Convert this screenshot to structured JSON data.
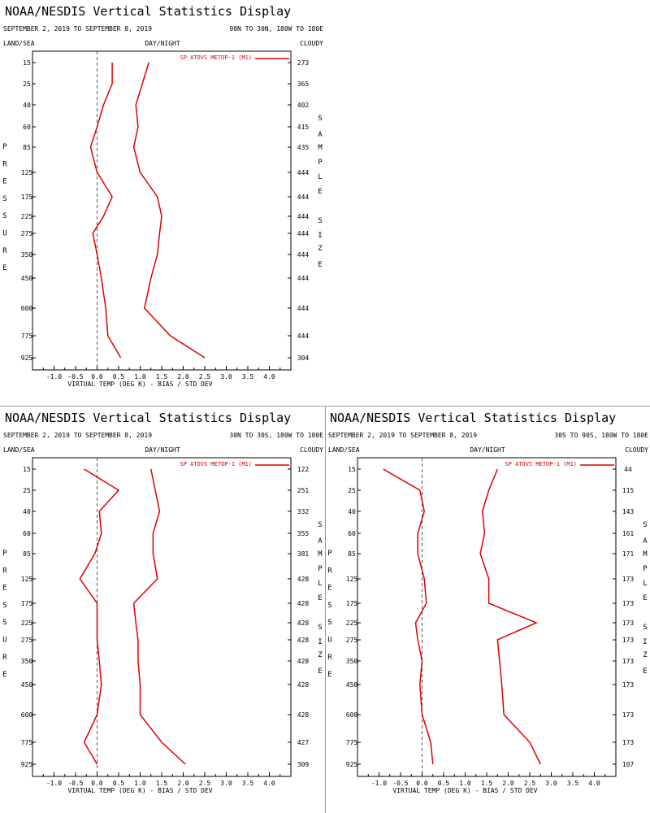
{
  "chart_data": [
    {
      "type": "line",
      "title": "NOAA/NESDIS Vertical Statistics Display",
      "date_range": "SEPTEMBER 2, 2019 TO SEPTEMBER 8, 2019",
      "region": "90N TO 30N, 180W TO 180E",
      "top_left_label": "LAND/SEA",
      "top_center_label": "DAY/NIGHT",
      "top_right_label": "CLOUDY",
      "xlabel": "VIRTUAL TEMP (DEG K) - BIAS / STD DEV",
      "ylabel": "PRESSURE",
      "right_axis_label": "SAMPLE SIZE",
      "legend": "SP ATOVS METOP-1 (M1)",
      "line_color": "#dd0000",
      "xlim": [
        -1.5,
        4.5
      ],
      "x_ticks": [
        "-1.0",
        "-0.5",
        "0.0",
        "0.5",
        "1.0",
        "1.5",
        "2.0",
        "2.5",
        "3.0",
        "3.5",
        "4.0"
      ],
      "pressure_levels": [
        "15",
        "25",
        "40",
        "60",
        "85",
        "125",
        "175",
        "225",
        "275",
        "350",
        "450",
        "600",
        "775",
        "925"
      ],
      "sample_sizes": [
        "273",
        "365",
        "402",
        "415",
        "435",
        "444",
        "444",
        "444",
        "444",
        "444",
        "444",
        "444",
        "444",
        "304"
      ],
      "series": [
        {
          "values": [
            0.35,
            0.35,
            0.15,
            0.0,
            -0.15,
            0.0,
            0.35,
            0.15,
            -0.1,
            0.0,
            0.1,
            0.2,
            0.25,
            0.55
          ]
        },
        {
          "values": [
            1.2,
            1.05,
            0.9,
            0.95,
            0.85,
            1.0,
            1.4,
            1.5,
            1.45,
            1.4,
            1.25,
            1.1,
            1.7,
            2.5
          ]
        }
      ]
    },
    {
      "type": "line",
      "title": "NOAA/NESDIS Vertical Statistics Display",
      "date_range": "SEPTEMBER 2, 2019 TO SEPTEMBER 8, 2019",
      "region": "30N TO 30S, 180W TO 180E",
      "top_left_label": "LAND/SEA",
      "top_center_label": "DAY/NIGHT",
      "top_right_label": "CLOUDY",
      "xlabel": "VIRTUAL TEMP (DEG K) - BIAS / STD DEV",
      "ylabel": "PRESSURE",
      "right_axis_label": "SAMPLE SIZE",
      "legend": "SP ATOVS METOP-1 (M1)",
      "line_color": "#dd0000",
      "xlim": [
        -1.5,
        4.5
      ],
      "x_ticks": [
        "-1.0",
        "-0.5",
        "0.0",
        "0.5",
        "1.0",
        "1.5",
        "2.0",
        "2.5",
        "3.0",
        "3.5",
        "4.0"
      ],
      "pressure_levels": [
        "15",
        "25",
        "40",
        "60",
        "85",
        "125",
        "175",
        "225",
        "275",
        "350",
        "450",
        "600",
        "775",
        "925"
      ],
      "sample_sizes": [
        "122",
        "251",
        "332",
        "355",
        "381",
        "428",
        "428",
        "428",
        "428",
        "428",
        "428",
        "428",
        "427",
        "309"
      ],
      "series": [
        {
          "values": [
            -0.3,
            0.5,
            0.05,
            0.1,
            -0.05,
            -0.4,
            0.0,
            0.0,
            0.0,
            0.05,
            0.1,
            0.0,
            -0.3,
            0.0
          ]
        },
        {
          "values": [
            1.25,
            1.35,
            1.45,
            1.3,
            1.3,
            1.4,
            0.85,
            0.9,
            0.95,
            0.95,
            1.0,
            1.0,
            1.5,
            2.05
          ]
        }
      ]
    },
    {
      "type": "line",
      "title": "NOAA/NESDIS Vertical Statistics Display",
      "date_range": "SEPTEMBER 2, 2019 TO SEPTEMBER 8, 2019",
      "region": "30S TO 90S, 180W TO 180E",
      "top_left_label": "LAND/SEA",
      "top_center_label": "DAY/NIGHT",
      "top_right_label": "CLOUDY",
      "xlabel": "VIRTUAL TEMP (DEG K) - BIAS / STD DEV",
      "ylabel": "PRESSURE",
      "right_axis_label": "SAMPLE SIZE",
      "legend": "SP ATOVS METOP-1 (M1)",
      "line_color": "#dd0000",
      "xlim": [
        -1.5,
        4.5
      ],
      "x_ticks": [
        "-1.0",
        "-0.5",
        "0.0",
        "0.5",
        "1.0",
        "1.5",
        "2.0",
        "2.5",
        "3.0",
        "3.5",
        "4.0"
      ],
      "pressure_levels": [
        "15",
        "25",
        "40",
        "60",
        "85",
        "125",
        "175",
        "225",
        "275",
        "350",
        "450",
        "600",
        "775",
        "925"
      ],
      "sample_sizes": [
        "44",
        "115",
        "143",
        "161",
        "171",
        "173",
        "173",
        "173",
        "173",
        "173",
        "173",
        "173",
        "173",
        "107"
      ],
      "series": [
        {
          "values": [
            -0.9,
            -0.05,
            0.05,
            -0.1,
            -0.1,
            0.05,
            0.1,
            -0.15,
            -0.1,
            0.0,
            -0.05,
            0.0,
            0.2,
            0.25
          ]
        },
        {
          "values": [
            1.75,
            1.55,
            1.4,
            1.45,
            1.35,
            1.55,
            1.55,
            2.65,
            1.75,
            1.8,
            1.85,
            1.9,
            2.5,
            2.75
          ]
        }
      ]
    }
  ]
}
